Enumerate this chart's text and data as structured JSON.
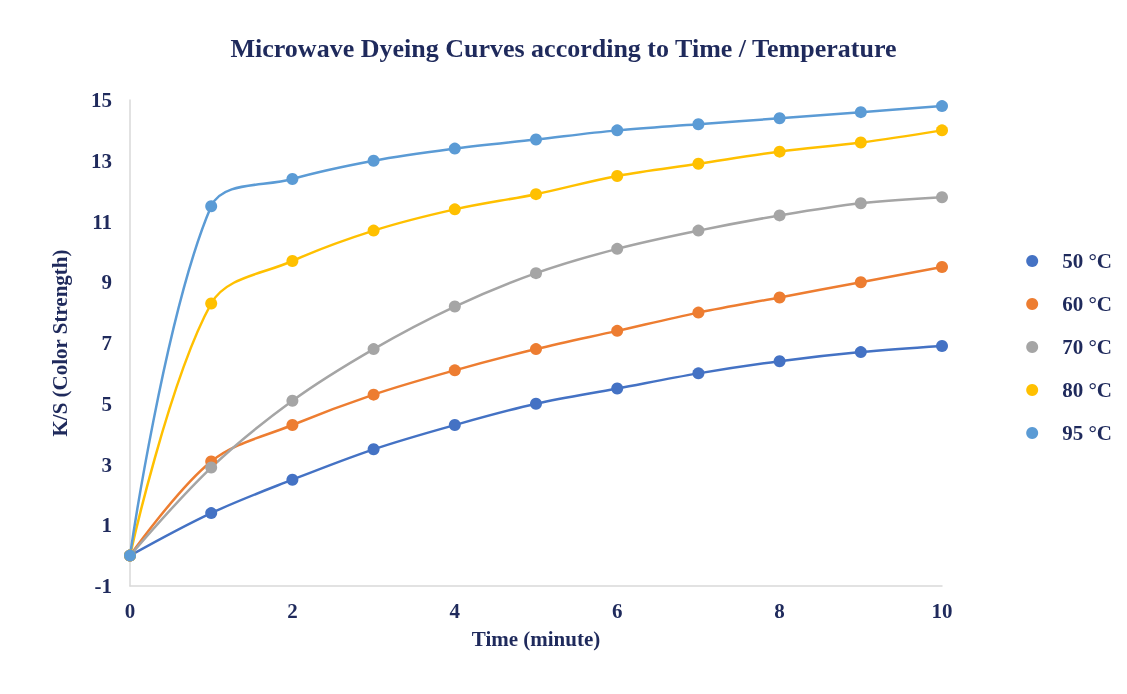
{
  "chart_data": {
    "type": "line",
    "title": "Microwave Dyeing Curves according to Time / Temperature",
    "xlabel": "Time (minute)",
    "ylabel": "K/S (Color Strength)",
    "x": [
      0,
      1,
      2,
      3,
      4,
      5,
      6,
      7,
      8,
      9,
      10
    ],
    "series": [
      {
        "name": "50 °C",
        "color": "#4472c4",
        "values": [
          0,
          1.4,
          2.5,
          3.5,
          4.3,
          5.0,
          5.5,
          6.0,
          6.4,
          6.7,
          6.9
        ]
      },
      {
        "name": "60 °C",
        "color": "#ed7d31",
        "values": [
          0,
          3.1,
          4.3,
          5.3,
          6.1,
          6.8,
          7.4,
          8.0,
          8.5,
          9.0,
          9.5
        ]
      },
      {
        "name": "70 °C",
        "color": "#a5a5a5",
        "values": [
          0,
          2.9,
          5.1,
          6.8,
          8.2,
          9.3,
          10.1,
          10.7,
          11.2,
          11.6,
          11.8
        ]
      },
      {
        "name": "80 °C",
        "color": "#ffc000",
        "values": [
          0,
          8.3,
          9.7,
          10.7,
          11.4,
          11.9,
          12.5,
          12.9,
          13.3,
          13.6,
          14.0
        ]
      },
      {
        "name": "95 °C",
        "color": "#5b9bd5",
        "values": [
          0,
          11.5,
          12.4,
          13.0,
          13.4,
          13.7,
          14.0,
          14.2,
          14.4,
          14.6,
          14.8
        ]
      }
    ],
    "xlim": [
      0,
      10
    ],
    "xticks": [
      0,
      2,
      4,
      6,
      8,
      10
    ],
    "ylim": [
      -1,
      15
    ],
    "yticks": [
      -1,
      1,
      3,
      5,
      7,
      9,
      11,
      13,
      15
    ],
    "grid": false,
    "legend": "right",
    "marker": "circle",
    "line_style": "solid"
  }
}
